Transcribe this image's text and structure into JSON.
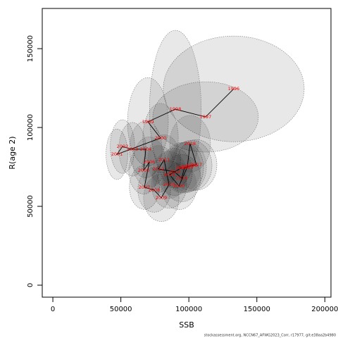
{
  "chart_data": {
    "type": "scatter",
    "x_label": "SSB",
    "y_label": "R(age 2)",
    "footnote": "stockassessment.org, NCCN67_AFWG2023_Corr, r17977, git:e38aa2b4980",
    "xlim": [
      -7800,
      204500
    ],
    "ylim": [
      -7600,
      175500
    ],
    "xticks": [
      0,
      50000,
      100000,
      150000,
      200000
    ],
    "yticks": [
      0,
      50000,
      100000,
      150000
    ],
    "label_color": "#ff0000",
    "line_color": "#000000",
    "ellipse_fill": "rgba(0,0,0,0.09)",
    "ellipse_stroke": "#777777",
    "labels": [
      "1996",
      "1997",
      "1998",
      "1999",
      "2000",
      "2001",
      "2002",
      "2003",
      "2004",
      "2005",
      "2006",
      "2007",
      "2008",
      "2009",
      "2010",
      "2011",
      "2012",
      "2013",
      "2014",
      "2015",
      "2016",
      "2017",
      "2018",
      "2019",
      "2020",
      "2021",
      "2022"
    ],
    "x": [
      133000,
      112300,
      90100,
      69900,
      79200,
      47100,
      51200,
      58500,
      68300,
      66800,
      70900,
      67300,
      74500,
      79700,
      85400,
      81800,
      77600,
      89500,
      94700,
      96800,
      102000,
      105600,
      100900,
      98900,
      92700,
      85900,
      94700
    ],
    "y": [
      124500,
      106700,
      111600,
      103600,
      93300,
      83000,
      87900,
      86200,
      86200,
      72800,
      78100,
      62100,
      60300,
      55400,
      63800,
      79500,
      73700,
      71900,
      67900,
      74500,
      75900,
      76300,
      89700,
      75000,
      62900,
      70100,
      74500
    ],
    "ellipse_x": [
      51800,
      38800,
      19000,
      15000,
      13000,
      8000,
      9000,
      10000,
      12000,
      11000,
      12000,
      11000,
      12000,
      13000,
      13000,
      12000,
      12000,
      13000,
      14000,
      14000,
      15000,
      15000,
      15000,
      14000,
      13000,
      13000,
      14000
    ],
    "ellipse_y": [
      33500,
      22300,
      50000,
      28000,
      22000,
      16000,
      17000,
      17000,
      18000,
      15000,
      16000,
      14000,
      14000,
      15000,
      15000,
      16000,
      15000,
      15000,
      15000,
      16000,
      16000,
      16000,
      18000,
      16000,
      15000,
      15000,
      16000
    ]
  }
}
